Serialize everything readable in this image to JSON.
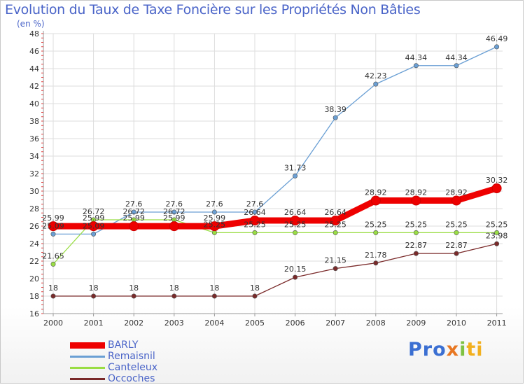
{
  "title": "Evolution du Taux de Taxe Foncière sur les Propriétés Non Bâties",
  "subtitle": "(en %)",
  "logo": {
    "p1": "Pro",
    "p2": "x",
    "p3": "i",
    "p4": "ti"
  },
  "chart_data": {
    "type": "line",
    "x": [
      "2000",
      "2001",
      "2002",
      "2003",
      "2004",
      "2005",
      "2006",
      "2007",
      "2008",
      "2009",
      "2010",
      "2011"
    ],
    "ylim": [
      16,
      48
    ],
    "yticks": [
      16,
      18,
      20,
      22,
      24,
      26,
      28,
      30,
      32,
      34,
      36,
      38,
      40,
      42,
      44,
      46,
      48
    ],
    "grid": true,
    "legend_position": "bottom-left",
    "series": [
      {
        "name": "BARLY",
        "color": "#ee0000",
        "values": [
          25.99,
          25.99,
          25.99,
          25.99,
          25.99,
          26.64,
          26.64,
          26.64,
          28.92,
          28.92,
          28.92,
          30.32
        ],
        "labels": [
          "25.99",
          "25.99",
          "25.99",
          "25.99",
          "25.99",
          "26.64",
          "26.64",
          "26.64",
          "28.92",
          "28.92",
          "28.92",
          "30.32"
        ]
      },
      {
        "name": "Remaisnil",
        "color": "#6a9fd4",
        "values": [
          25.09,
          25.09,
          27.6,
          27.6,
          27.6,
          27.6,
          31.73,
          38.39,
          42.23,
          44.34,
          44.34,
          46.49
        ],
        "labels": [
          "25.09",
          "25.09",
          "27.6",
          "27.6",
          "27.6",
          "27.6",
          "31.73",
          "38.39",
          "42.23",
          "44.34",
          "44.34",
          "46.49"
        ]
      },
      {
        "name": "Canteleux",
        "color": "#99dd44",
        "values": [
          21.65,
          26.72,
          26.72,
          26.72,
          25.25,
          25.25,
          25.25,
          25.25,
          25.25,
          25.25,
          25.25,
          25.25
        ],
        "labels": [
          "21.65",
          "26.72",
          "26.72",
          "26.72",
          "25.25",
          "25.25",
          "25.25",
          "25.25",
          "25.25",
          "25.25",
          "25.25",
          "25.25"
        ]
      },
      {
        "name": "Occoches",
        "color": "#7a2a2a",
        "values": [
          18,
          18,
          18,
          18,
          18,
          18,
          20.15,
          21.15,
          21.78,
          22.87,
          22.87,
          23.98
        ],
        "labels": [
          "18",
          "18",
          "18",
          "18",
          "18",
          "18",
          "20.15",
          "21.15",
          "21.78",
          "22.87",
          "22.87",
          "23.98"
        ]
      }
    ]
  }
}
